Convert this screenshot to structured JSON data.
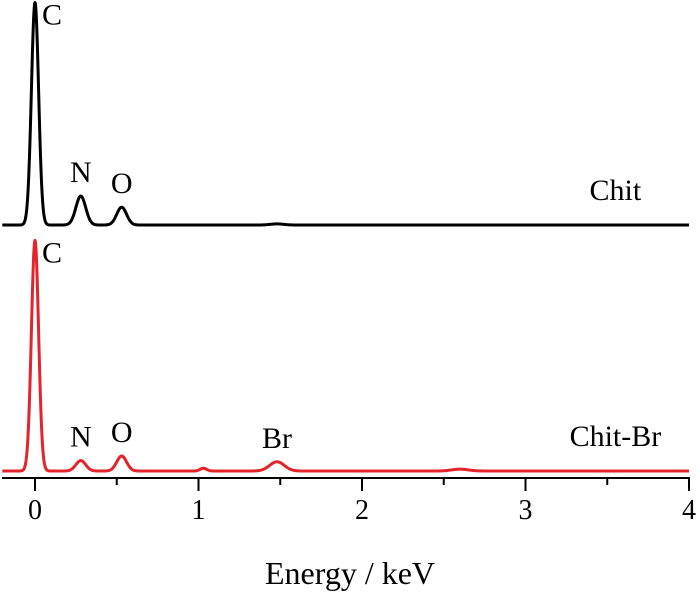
{
  "chart_data": {
    "type": "line",
    "title": "",
    "xlabel": "Energy / keV",
    "ylabel": "",
    "xlim": [
      -0.2,
      4.0
    ],
    "xticks": [
      0,
      1,
      2,
      3,
      4
    ],
    "y_axis_visible": false,
    "grid": false,
    "legend": "none",
    "series": [
      {
        "name": "Chit",
        "color": "#000000",
        "baseline": 0.02,
        "peaks": [
          {
            "element": "C",
            "energy": 0.0,
            "height": 1.0,
            "width": 0.022
          },
          {
            "element": "N",
            "energy": 0.28,
            "height": 0.13,
            "width": 0.03
          },
          {
            "element": "O",
            "energy": 0.53,
            "height": 0.08,
            "width": 0.03
          },
          {
            "element": "",
            "energy": 1.48,
            "height": 0.005,
            "width": 0.04
          }
        ]
      },
      {
        "name": "Chit-Br",
        "color": "#e3242b",
        "baseline": 0.02,
        "peaks": [
          {
            "element": "C",
            "energy": 0.0,
            "height": 1.0,
            "width": 0.022
          },
          {
            "element": "N",
            "energy": 0.28,
            "height": 0.045,
            "width": 0.03
          },
          {
            "element": "O",
            "energy": 0.53,
            "height": 0.065,
            "width": 0.03
          },
          {
            "element": "",
            "energy": 1.03,
            "height": 0.012,
            "width": 0.02
          },
          {
            "element": "Br",
            "energy": 1.48,
            "height": 0.04,
            "width": 0.045
          },
          {
            "element": "",
            "energy": 2.6,
            "height": 0.008,
            "width": 0.05
          }
        ]
      }
    ]
  }
}
